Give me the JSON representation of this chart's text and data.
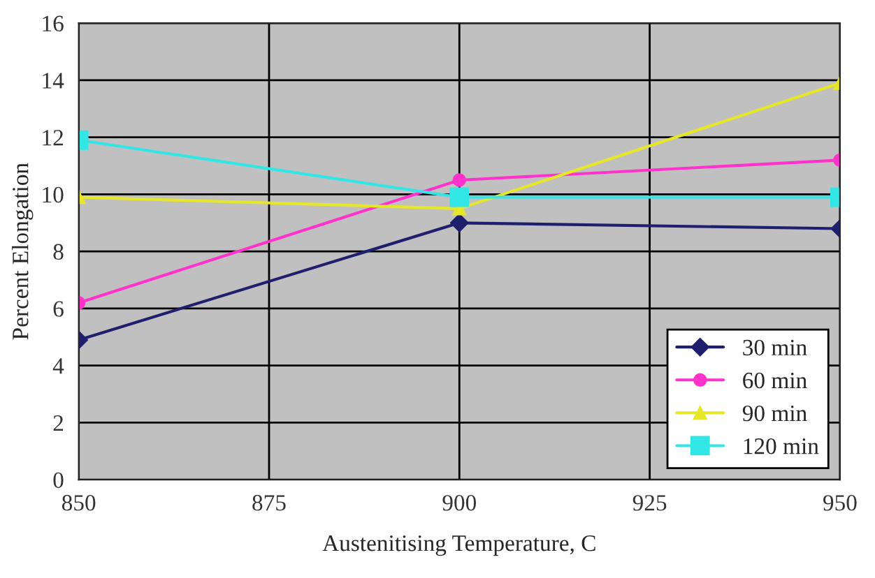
{
  "chart_data": {
    "type": "line",
    "xlabel": "Austenitising Temperature, C",
    "ylabel": "Percent Elongation",
    "x": [
      850,
      900,
      950
    ],
    "xlim": [
      850,
      950
    ],
    "xticks": [
      850,
      875,
      900,
      925,
      950
    ],
    "ylim": [
      0,
      16
    ],
    "yticks": [
      0,
      2,
      4,
      6,
      8,
      10,
      12,
      14,
      16
    ],
    "grid": true,
    "legend": "bottom right",
    "line_style": "solid",
    "series": [
      {
        "name": "30 min",
        "color": "#1f1f6e",
        "marker": "diamond",
        "values": [
          4.9,
          9.0,
          8.8
        ]
      },
      {
        "name": "60 min",
        "color": "#ff33cc",
        "marker": "circle",
        "values": [
          6.2,
          10.5,
          11.2
        ]
      },
      {
        "name": "90 min",
        "color": "#e6e62a",
        "marker": "triangle",
        "values": [
          9.9,
          9.5,
          13.9
        ]
      },
      {
        "name": "120 min",
        "color": "#33e6e6",
        "marker": "square",
        "values": [
          11.9,
          9.9,
          9.9
        ]
      }
    ]
  }
}
